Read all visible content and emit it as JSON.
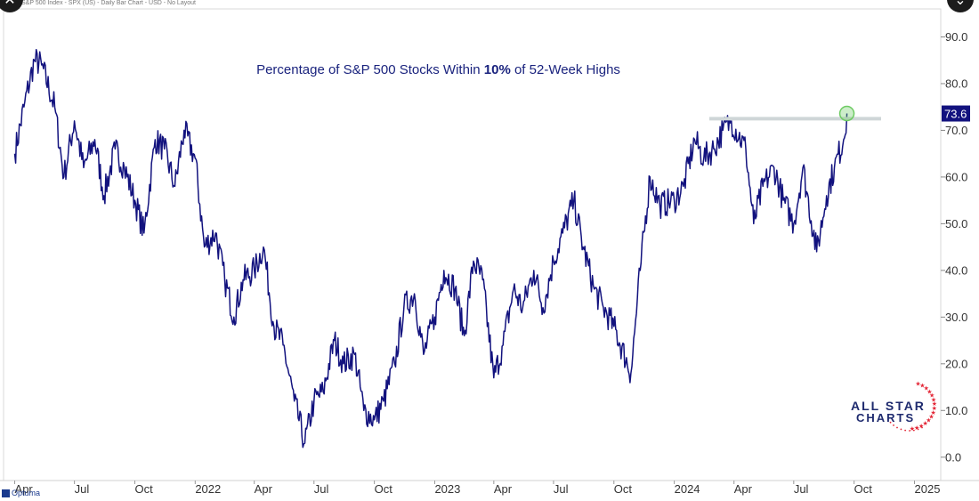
{
  "header": {
    "text": "S&P 500 Index - SPX (US) - Daily Bar Chart - USD - No Layout"
  },
  "title": {
    "prefix": "Percentage of S&P 500 Stocks Within ",
    "bold": "10%",
    "suffix": " of 52-Week Highs"
  },
  "logo": {
    "line1": "ALL STAR",
    "line2": "CHARTS"
  },
  "branding": {
    "optuma": "Optuma"
  },
  "colors": {
    "line": "#12127e",
    "accent_text": "#1a237e",
    "reference_line": "#cfd6d8",
    "highlight_circle": "#6ecb63",
    "logo_stars": "#e32636"
  },
  "icons": {
    "corner_left": "close-icon",
    "corner_right": "chevron-icon"
  },
  "chart_data": {
    "type": "line",
    "title": "Percentage of S&P 500 Stocks Within 10% of 52-Week Highs",
    "xlabel": "",
    "ylabel": "",
    "ylim": [
      -5,
      96
    ],
    "y_ticks": [
      "90.0",
      "80.0",
      "70.0",
      "60.0",
      "50.0",
      "40.0",
      "30.0",
      "20.0",
      "10.0",
      "0.0"
    ],
    "x_ticks": [
      "Apr",
      "Jul",
      "Oct",
      "2022",
      "Apr",
      "Jul",
      "Oct",
      "2023",
      "Apr",
      "Jul",
      "Oct",
      "2024",
      "Apr",
      "Jul",
      "Oct",
      "2025"
    ],
    "last_value_label": "73.6",
    "reference_level": 72.5,
    "grid": false,
    "legend": "none",
    "series": [
      {
        "x": [
          "2021-04-01",
          "2021-04-15",
          "2021-05-01",
          "2021-05-12",
          "2021-06-01",
          "2021-06-15",
          "2021-07-01",
          "2021-07-15",
          "2021-08-01",
          "2021-08-15",
          "2021-09-01",
          "2021-09-15",
          "2021-10-01",
          "2021-10-15",
          "2021-11-01",
          "2021-11-15",
          "2021-12-01",
          "2021-12-15",
          "2022-01-01",
          "2022-01-15",
          "2022-02-01",
          "2022-02-15",
          "2022-03-01",
          "2022-03-15",
          "2022-04-01",
          "2022-04-15",
          "2022-05-01",
          "2022-05-15",
          "2022-06-01",
          "2022-06-17",
          "2022-07-01",
          "2022-07-15",
          "2022-08-01",
          "2022-08-15",
          "2022-09-01",
          "2022-09-15",
          "2022-10-01",
          "2022-10-15",
          "2022-11-01",
          "2022-11-15",
          "2022-12-01",
          "2022-12-15",
          "2023-01-01",
          "2023-01-15",
          "2023-02-01",
          "2023-02-15",
          "2023-03-01",
          "2023-03-15",
          "2023-04-01",
          "2023-04-15",
          "2023-05-01",
          "2023-05-15",
          "2023-06-01",
          "2023-06-15",
          "2023-07-01",
          "2023-07-15",
          "2023-08-01",
          "2023-08-15",
          "2023-09-01",
          "2023-09-15",
          "2023-10-01",
          "2023-10-27",
          "2023-11-10",
          "2023-11-25",
          "2023-12-10",
          "2024-01-01",
          "2024-01-15",
          "2024-02-01",
          "2024-02-15",
          "2024-03-01",
          "2024-03-15",
          "2024-03-28",
          "2024-04-19",
          "2024-05-01",
          "2024-05-15",
          "2024-06-01",
          "2024-06-15",
          "2024-07-01",
          "2024-07-15",
          "2024-08-05",
          "2024-08-20",
          "2024-09-01",
          "2024-09-15",
          "2024-09-20"
        ],
        "y": [
          65,
          75,
          85,
          84,
          75,
          60,
          72,
          62,
          68,
          56,
          66,
          62,
          55,
          48,
          68,
          66,
          58,
          70,
          64,
          45,
          48,
          38,
          30,
          38,
          40,
          45,
          28,
          24,
          12,
          3,
          12,
          14,
          25,
          20,
          22,
          10,
          8,
          12,
          20,
          32,
          35,
          22,
          30,
          40,
          36,
          26,
          42,
          38,
          17,
          24,
          36,
          32,
          40,
          32,
          42,
          48,
          55,
          45,
          36,
          32,
          28,
          18,
          40,
          60,
          54,
          55,
          58,
          68,
          64,
          66,
          70,
          72,
          66,
          50,
          58,
          62,
          55,
          50,
          62,
          44,
          56,
          62,
          68,
          73.6
        ]
      }
    ]
  }
}
